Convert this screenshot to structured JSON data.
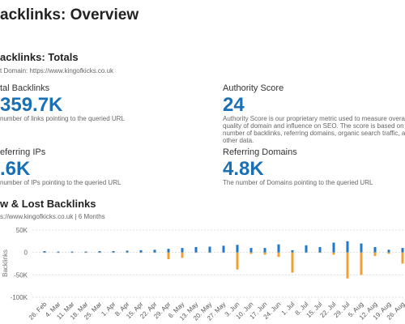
{
  "page_title": "acklinks: Overview",
  "totals": {
    "title": "acklinks: Totals",
    "domain": "t Domain: https://www.kingofkicks.co.uk",
    "metrics": [
      {
        "label": "tal Backlinks",
        "value": "359.7K",
        "desc": "number of links pointing to the queried URL"
      },
      {
        "label": "Authority Score",
        "value": "24",
        "desc": "Authority Score is our proprietary metric used to measure overall quality of domain and influence on SEO. The score is based on the number of backlinks, referring domains, organic search traffic, and other data."
      },
      {
        "label": "eferring IPs",
        "value": ".6K",
        "desc": "number of IPs pointing to the queried URL"
      },
      {
        "label": "Referring Domains",
        "value": "4.8K",
        "desc": "The number of Domains pointing to the queried URL"
      }
    ]
  },
  "chart_data": {
    "type": "bar",
    "title": "w & Lost Backlinks",
    "subtitle": "s://www.kingofkicks.co.uk | 6 Months",
    "yaxis_label": "Backlinks",
    "categories": [
      "26. Feb",
      "4. Mar",
      "11. Mar",
      "18. Mar",
      "25. Mar",
      "1. Apr",
      "8. Apr",
      "15. Apr",
      "22. Apr",
      "29. Apr",
      "6. May",
      "13. May",
      "20. May",
      "27. May",
      "3. Jun",
      "10. Jun",
      "17. Jun",
      "24. Jun",
      "1. Jul",
      "8. Jul",
      "15. Jul",
      "22. Jul",
      "29. Jul",
      "5. Aug",
      "12. Aug",
      "19. Aug",
      "26. Aug"
    ],
    "series": [
      {
        "color": "#1f78c8",
        "values": [
          3000,
          2000,
          2000,
          2000,
          3000,
          3000,
          4000,
          5000,
          6000,
          8000,
          10000,
          12000,
          13000,
          15000,
          17000,
          10000,
          10000,
          18000,
          5000,
          16000,
          12000,
          22000,
          25000,
          20000,
          12000,
          6000,
          10000
        ]
      },
      {
        "color": "#f0a030",
        "values": [
          -1000,
          -1000,
          -1000,
          -1000,
          -1000,
          -1000,
          -1000,
          -1000,
          -1000,
          -15000,
          -12000,
          -1000,
          -1000,
          -1000,
          -38000,
          -3000,
          -5000,
          -10000,
          -45000,
          -1000,
          -1000,
          -5000,
          -58000,
          -50000,
          -8000,
          -3000,
          -25000
        ]
      }
    ],
    "ylim": [
      -100000,
      50000
    ],
    "yticks": [
      {
        "value": 50000,
        "label": "50K"
      },
      0,
      {
        "value": -50000,
        "label": "-50K"
      },
      {
        "value": -100000,
        "label": "-100K"
      }
    ],
    "grid": true
  }
}
